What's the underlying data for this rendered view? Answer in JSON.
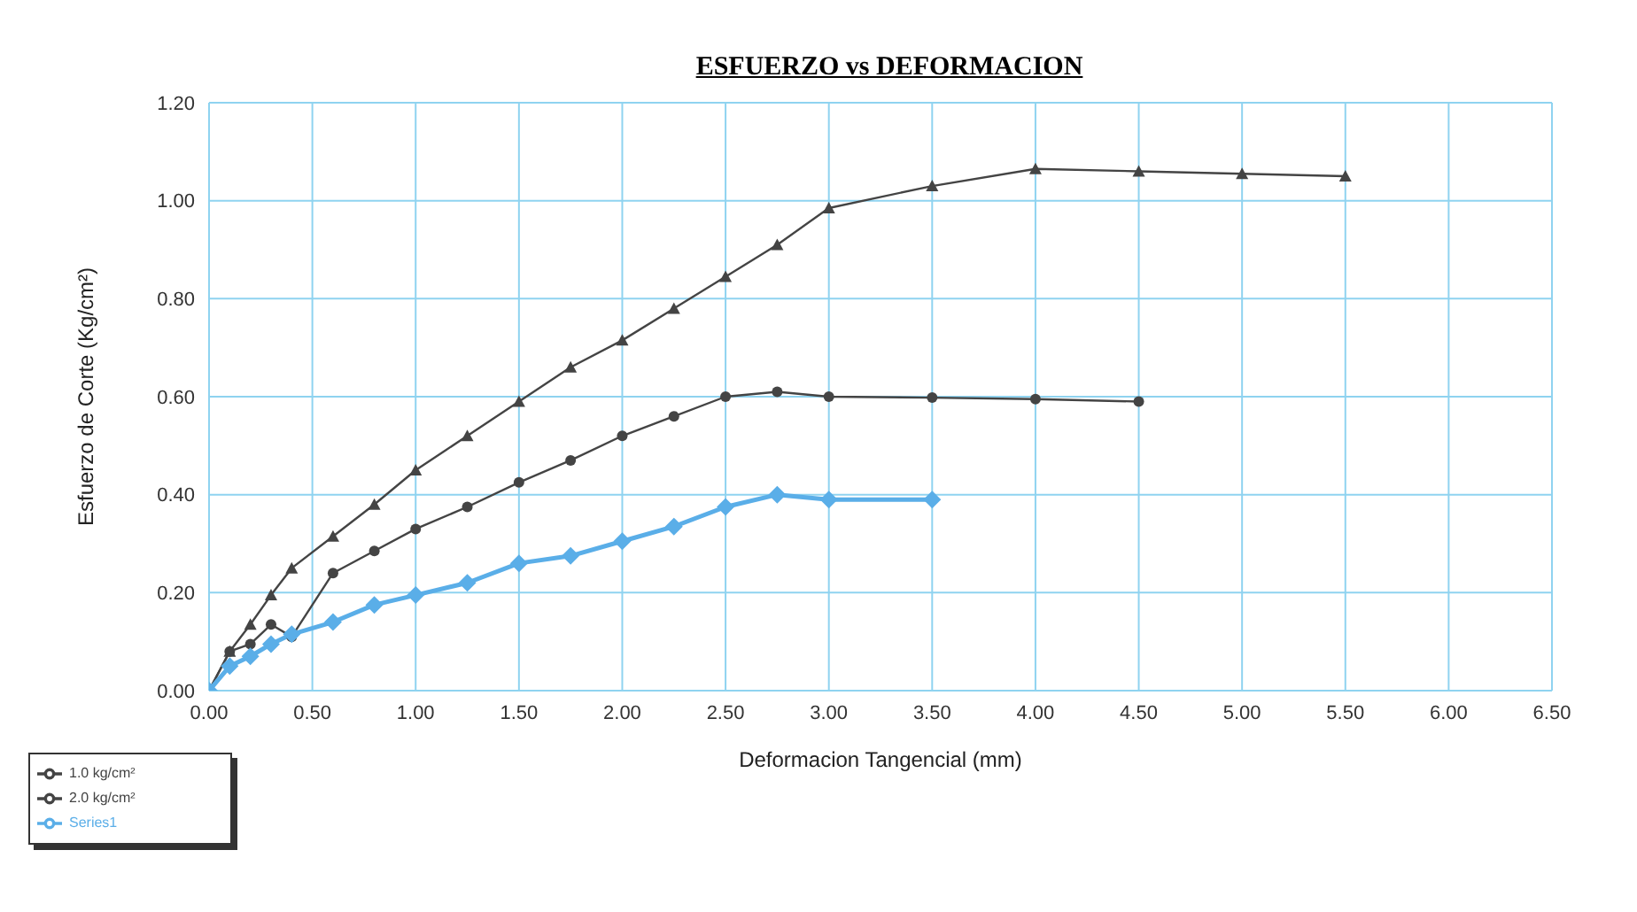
{
  "chart_data": {
    "type": "line",
    "title": "ESFUERZO  vs DEFORMACION",
    "xlabel": "Deformacion Tangencial (mm)",
    "ylabel": "Esfuerzo de Corte (Kg/cm²)",
    "xlim": [
      0,
      6.5
    ],
    "xticks": [
      {
        "value": 0,
        "label": "0.00"
      },
      {
        "value": 0.5,
        "label": "0.50"
      },
      {
        "value": 1,
        "label": "1.00"
      },
      {
        "value": 1.5,
        "label": "1.50"
      },
      {
        "value": 2,
        "label": "2.00"
      },
      {
        "value": 2.5,
        "label": "2.50"
      },
      {
        "value": 3,
        "label": "3.00"
      },
      {
        "value": 3.5,
        "label": "3.50"
      },
      {
        "value": 4,
        "label": "4.00"
      },
      {
        "value": 4.5,
        "label": "4.50"
      },
      {
        "value": 5,
        "label": "5.00"
      },
      {
        "value": 5.5,
        "label": "5.50"
      },
      {
        "value": 6,
        "label": "6.00"
      },
      {
        "value": 6.5,
        "label": "6.50"
      }
    ],
    "ylim": [
      0,
      1.2
    ],
    "yticks": [
      {
        "value": 0,
        "label": "0.00"
      },
      {
        "value": 0.2,
        "label": "0.20"
      },
      {
        "value": 0.4,
        "label": "0.40"
      },
      {
        "value": 0.6,
        "label": "0.60"
      },
      {
        "value": 0.8,
        "label": "0.80"
      },
      {
        "value": 1,
        "label": "1.00"
      },
      {
        "value": 1.2,
        "label": "1.20"
      }
    ],
    "grid": true,
    "legend": "bottom left",
    "series": [
      {
        "name": "1.0 kg/cm²",
        "color": "#444444",
        "marker": "circle",
        "x": [
          0,
          0.1,
          0.2,
          0.3,
          0.4,
          0.6,
          0.8,
          1,
          1.25,
          1.5,
          1.75,
          2,
          2.25,
          2.5,
          2.75,
          3,
          3.5,
          4,
          4.5
        ],
        "values": [
          0,
          0.08,
          0.095,
          0.135,
          0.11,
          0.24,
          0.285,
          0.33,
          0.375,
          0.425,
          0.47,
          0.52,
          0.56,
          0.6,
          0.61,
          0.6,
          0.598,
          0.595,
          0.59
        ]
      },
      {
        "name": "2.0 kg/cm²",
        "color": "#444444",
        "marker": "triangle",
        "x": [
          0,
          0.1,
          0.2,
          0.3,
          0.4,
          0.6,
          0.8,
          1,
          1.25,
          1.5,
          1.75,
          2,
          2.25,
          2.5,
          2.75,
          3,
          3.5,
          4,
          4.5,
          5,
          5.5
        ],
        "values": [
          0,
          0.08,
          0.135,
          0.195,
          0.25,
          0.315,
          0.38,
          0.45,
          0.52,
          0.59,
          0.66,
          0.715,
          0.78,
          0.845,
          0.91,
          0.985,
          1.03,
          1.065,
          1.06,
          1.055,
          1.05
        ]
      },
      {
        "name": "Series1",
        "color": "#5aaee8",
        "marker": "diamond",
        "x": [
          0,
          0.1,
          0.2,
          0.3,
          0.4,
          0.6,
          0.8,
          1,
          1.25,
          1.5,
          1.75,
          2,
          2.25,
          2.5,
          2.75,
          3,
          3.5
        ],
        "values": [
          0,
          0.05,
          0.07,
          0.095,
          0.115,
          0.14,
          0.175,
          0.195,
          0.22,
          0.26,
          0.275,
          0.305,
          0.335,
          0.375,
          0.4,
          0.39,
          0.39
        ]
      }
    ]
  }
}
